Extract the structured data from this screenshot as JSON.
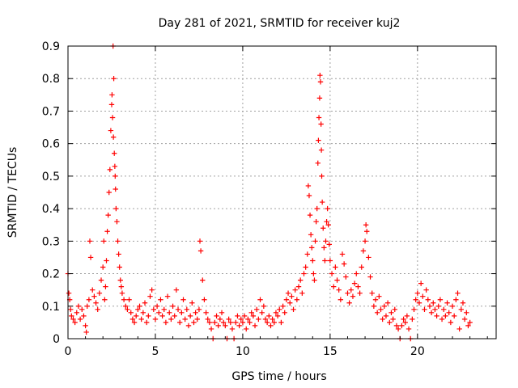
{
  "chart_data": {
    "type": "scatter",
    "title": "Day 281 of 2021, SRMTID for receiver kuj2",
    "xlabel": "GPS time / hours",
    "ylabel": "SRMTID / TECUs",
    "xlim": [
      0,
      24.5
    ],
    "ylim": [
      0,
      0.9
    ],
    "xticks": [
      0,
      5,
      10,
      15,
      20
    ],
    "xtick_labels": [
      "0",
      "5",
      "10",
      "15",
      "20"
    ],
    "yticks": [
      0,
      0.1,
      0.2,
      0.3,
      0.4,
      0.5,
      0.6,
      0.7,
      0.8,
      0.9
    ],
    "ytick_labels": [
      "0",
      "0.1",
      "0.2",
      "0.3",
      "0.4",
      "0.5",
      "0.6",
      "0.7",
      "0.8",
      "0.9"
    ],
    "grid": true,
    "marker": "+",
    "color": "#ff0000",
    "series": [
      {
        "name": "SRMTID",
        "points": [
          [
            0.0,
            0.2
          ],
          [
            0.05,
            0.14
          ],
          [
            0.1,
            0.12
          ],
          [
            0.15,
            0.09
          ],
          [
            0.2,
            0.07
          ],
          [
            0.3,
            0.06
          ],
          [
            0.4,
            0.05
          ],
          [
            0.5,
            0.08
          ],
          [
            0.6,
            0.1
          ],
          [
            0.7,
            0.06
          ],
          [
            0.8,
            0.09
          ],
          [
            0.9,
            0.07
          ],
          [
            1.0,
            0.04
          ],
          [
            1.05,
            0.02
          ],
          [
            1.1,
            0.1
          ],
          [
            1.2,
            0.12
          ],
          [
            1.25,
            0.3
          ],
          [
            1.3,
            0.25
          ],
          [
            1.4,
            0.15
          ],
          [
            1.5,
            0.13
          ],
          [
            1.6,
            0.11
          ],
          [
            1.7,
            0.09
          ],
          [
            1.8,
            0.14
          ],
          [
            1.9,
            0.18
          ],
          [
            2.0,
            0.22
          ],
          [
            2.05,
            0.3
          ],
          [
            2.1,
            0.12
          ],
          [
            2.15,
            0.16
          ],
          [
            2.2,
            0.24
          ],
          [
            2.25,
            0.33
          ],
          [
            2.3,
            0.38
          ],
          [
            2.35,
            0.45
          ],
          [
            2.4,
            0.52
          ],
          [
            2.45,
            0.64
          ],
          [
            2.5,
            0.72
          ],
          [
            2.52,
            0.75
          ],
          [
            2.55,
            0.68
          ],
          [
            2.58,
            0.9
          ],
          [
            2.6,
            0.62
          ],
          [
            2.62,
            0.8
          ],
          [
            2.65,
            0.57
          ],
          [
            2.68,
            0.53
          ],
          [
            2.7,
            0.5
          ],
          [
            2.72,
            0.46
          ],
          [
            2.75,
            0.4
          ],
          [
            2.8,
            0.36
          ],
          [
            2.85,
            0.3
          ],
          [
            2.9,
            0.26
          ],
          [
            2.95,
            0.22
          ],
          [
            3.0,
            0.18
          ],
          [
            3.05,
            0.16
          ],
          [
            3.1,
            0.14
          ],
          [
            3.2,
            0.12
          ],
          [
            3.3,
            0.1
          ],
          [
            3.4,
            0.09
          ],
          [
            3.5,
            0.12
          ],
          [
            3.6,
            0.08
          ],
          [
            3.7,
            0.06
          ],
          [
            3.8,
            0.05
          ],
          [
            3.9,
            0.07
          ],
          [
            4.0,
            0.09
          ],
          [
            4.1,
            0.1
          ],
          [
            4.2,
            0.06
          ],
          [
            4.3,
            0.08
          ],
          [
            4.4,
            0.11
          ],
          [
            4.5,
            0.05
          ],
          [
            4.6,
            0.07
          ],
          [
            4.7,
            0.13
          ],
          [
            4.8,
            0.15
          ],
          [
            4.9,
            0.09
          ],
          [
            5.0,
            0.06
          ],
          [
            5.1,
            0.1
          ],
          [
            5.2,
            0.08
          ],
          [
            5.3,
            0.12
          ],
          [
            5.4,
            0.07
          ],
          [
            5.5,
            0.09
          ],
          [
            5.6,
            0.05
          ],
          [
            5.7,
            0.13
          ],
          [
            5.8,
            0.08
          ],
          [
            5.9,
            0.06
          ],
          [
            6.0,
            0.1
          ],
          [
            6.1,
            0.07
          ],
          [
            6.2,
            0.15
          ],
          [
            6.3,
            0.09
          ],
          [
            6.4,
            0.05
          ],
          [
            6.5,
            0.08
          ],
          [
            6.6,
            0.12
          ],
          [
            6.7,
            0.06
          ],
          [
            6.8,
            0.09
          ],
          [
            6.9,
            0.04
          ],
          [
            7.0,
            0.07
          ],
          [
            7.1,
            0.11
          ],
          [
            7.2,
            0.05
          ],
          [
            7.3,
            0.08
          ],
          [
            7.4,
            0.06
          ],
          [
            7.5,
            0.09
          ],
          [
            7.55,
            0.3
          ],
          [
            7.6,
            0.27
          ],
          [
            7.7,
            0.18
          ],
          [
            7.8,
            0.12
          ],
          [
            7.9,
            0.08
          ],
          [
            8.0,
            0.06
          ],
          [
            8.1,
            0.05
          ],
          [
            8.2,
            0.03
          ],
          [
            8.3,
            0.0
          ],
          [
            8.4,
            0.05
          ],
          [
            8.5,
            0.07
          ],
          [
            8.6,
            0.04
          ],
          [
            8.7,
            0.06
          ],
          [
            8.8,
            0.08
          ],
          [
            8.9,
            0.05
          ],
          [
            9.0,
            0.04
          ],
          [
            9.1,
            0.0
          ],
          [
            9.2,
            0.06
          ],
          [
            9.3,
            0.05
          ],
          [
            9.4,
            0.03
          ],
          [
            9.5,
            0.0
          ],
          [
            9.6,
            0.05
          ],
          [
            9.7,
            0.07
          ],
          [
            9.8,
            0.04
          ],
          [
            9.9,
            0.06
          ],
          [
            10.0,
            0.05
          ],
          [
            10.1,
            0.07
          ],
          [
            10.2,
            0.03
          ],
          [
            10.3,
            0.06
          ],
          [
            10.4,
            0.05
          ],
          [
            10.5,
            0.08
          ],
          [
            10.6,
            0.07
          ],
          [
            10.7,
            0.04
          ],
          [
            10.8,
            0.09
          ],
          [
            10.9,
            0.06
          ],
          [
            11.0,
            0.12
          ],
          [
            11.1,
            0.08
          ],
          [
            11.2,
            0.1
          ],
          [
            11.3,
            0.06
          ],
          [
            11.4,
            0.05
          ],
          [
            11.5,
            0.07
          ],
          [
            11.6,
            0.04
          ],
          [
            11.7,
            0.06
          ],
          [
            11.8,
            0.05
          ],
          [
            11.9,
            0.08
          ],
          [
            12.0,
            0.07
          ],
          [
            12.1,
            0.09
          ],
          [
            12.2,
            0.05
          ],
          [
            12.3,
            0.1
          ],
          [
            12.4,
            0.08
          ],
          [
            12.5,
            0.12
          ],
          [
            12.6,
            0.14
          ],
          [
            12.7,
            0.11
          ],
          [
            12.8,
            0.13
          ],
          [
            12.9,
            0.09
          ],
          [
            13.0,
            0.15
          ],
          [
            13.1,
            0.12
          ],
          [
            13.2,
            0.16
          ],
          [
            13.3,
            0.18
          ],
          [
            13.4,
            0.14
          ],
          [
            13.5,
            0.2
          ],
          [
            13.6,
            0.22
          ],
          [
            13.7,
            0.26
          ],
          [
            13.75,
            0.47
          ],
          [
            13.8,
            0.44
          ],
          [
            13.85,
            0.38
          ],
          [
            13.9,
            0.32
          ],
          [
            13.95,
            0.28
          ],
          [
            14.0,
            0.24
          ],
          [
            14.05,
            0.2
          ],
          [
            14.1,
            0.18
          ],
          [
            14.15,
            0.3
          ],
          [
            14.2,
            0.36
          ],
          [
            14.25,
            0.4
          ],
          [
            14.3,
            0.54
          ],
          [
            14.33,
            0.61
          ],
          [
            14.36,
            0.68
          ],
          [
            14.4,
            0.74
          ],
          [
            14.42,
            0.81
          ],
          [
            14.45,
            0.79
          ],
          [
            14.48,
            0.66
          ],
          [
            14.5,
            0.58
          ],
          [
            14.52,
            0.5
          ],
          [
            14.55,
            0.42
          ],
          [
            14.6,
            0.34
          ],
          [
            14.65,
            0.28
          ],
          [
            14.7,
            0.24
          ],
          [
            14.75,
            0.3
          ],
          [
            14.8,
            0.36
          ],
          [
            14.85,
            0.4
          ],
          [
            14.9,
            0.35
          ],
          [
            14.95,
            0.29
          ],
          [
            15.0,
            0.24
          ],
          [
            15.1,
            0.2
          ],
          [
            15.2,
            0.16
          ],
          [
            15.3,
            0.22
          ],
          [
            15.4,
            0.18
          ],
          [
            15.5,
            0.15
          ],
          [
            15.6,
            0.12
          ],
          [
            15.7,
            0.26
          ],
          [
            15.8,
            0.23
          ],
          [
            15.9,
            0.19
          ],
          [
            16.0,
            0.14
          ],
          [
            16.1,
            0.11
          ],
          [
            16.2,
            0.15
          ],
          [
            16.3,
            0.13
          ],
          [
            16.4,
            0.17
          ],
          [
            16.5,
            0.2
          ],
          [
            16.6,
            0.16
          ],
          [
            16.7,
            0.14
          ],
          [
            16.8,
            0.22
          ],
          [
            16.9,
            0.27
          ],
          [
            17.0,
            0.3
          ],
          [
            17.05,
            0.35
          ],
          [
            17.1,
            0.33
          ],
          [
            17.2,
            0.25
          ],
          [
            17.3,
            0.19
          ],
          [
            17.4,
            0.14
          ],
          [
            17.5,
            0.1
          ],
          [
            17.6,
            0.12
          ],
          [
            17.7,
            0.08
          ],
          [
            17.8,
            0.13
          ],
          [
            17.9,
            0.09
          ],
          [
            18.0,
            0.06
          ],
          [
            18.1,
            0.1
          ],
          [
            18.2,
            0.07
          ],
          [
            18.3,
            0.11
          ],
          [
            18.4,
            0.05
          ],
          [
            18.5,
            0.08
          ],
          [
            18.6,
            0.06
          ],
          [
            18.7,
            0.09
          ],
          [
            18.8,
            0.04
          ],
          [
            18.9,
            0.03
          ],
          [
            19.0,
            0.0
          ],
          [
            19.1,
            0.04
          ],
          [
            19.2,
            0.06
          ],
          [
            19.3,
            0.05
          ],
          [
            19.4,
            0.07
          ],
          [
            19.5,
            0.03
          ],
          [
            19.6,
            0.0
          ],
          [
            19.7,
            0.06
          ],
          [
            19.8,
            0.09
          ],
          [
            19.9,
            0.12
          ],
          [
            20.0,
            0.14
          ],
          [
            20.1,
            0.11
          ],
          [
            20.2,
            0.17
          ],
          [
            20.3,
            0.13
          ],
          [
            20.4,
            0.09
          ],
          [
            20.5,
            0.15
          ],
          [
            20.6,
            0.12
          ],
          [
            20.7,
            0.1
          ],
          [
            20.8,
            0.08
          ],
          [
            20.9,
            0.11
          ],
          [
            21.0,
            0.09
          ],
          [
            21.1,
            0.07
          ],
          [
            21.2,
            0.1
          ],
          [
            21.3,
            0.12
          ],
          [
            21.4,
            0.06
          ],
          [
            21.5,
            0.09
          ],
          [
            21.6,
            0.07
          ],
          [
            21.7,
            0.11
          ],
          [
            21.8,
            0.08
          ],
          [
            21.9,
            0.05
          ],
          [
            22.0,
            0.1
          ],
          [
            22.1,
            0.07
          ],
          [
            22.2,
            0.12
          ],
          [
            22.3,
            0.14
          ],
          [
            22.4,
            0.03
          ],
          [
            22.5,
            0.09
          ],
          [
            22.6,
            0.11
          ],
          [
            22.7,
            0.06
          ],
          [
            22.8,
            0.08
          ],
          [
            22.9,
            0.04
          ],
          [
            23.0,
            0.05
          ]
        ]
      }
    ]
  }
}
